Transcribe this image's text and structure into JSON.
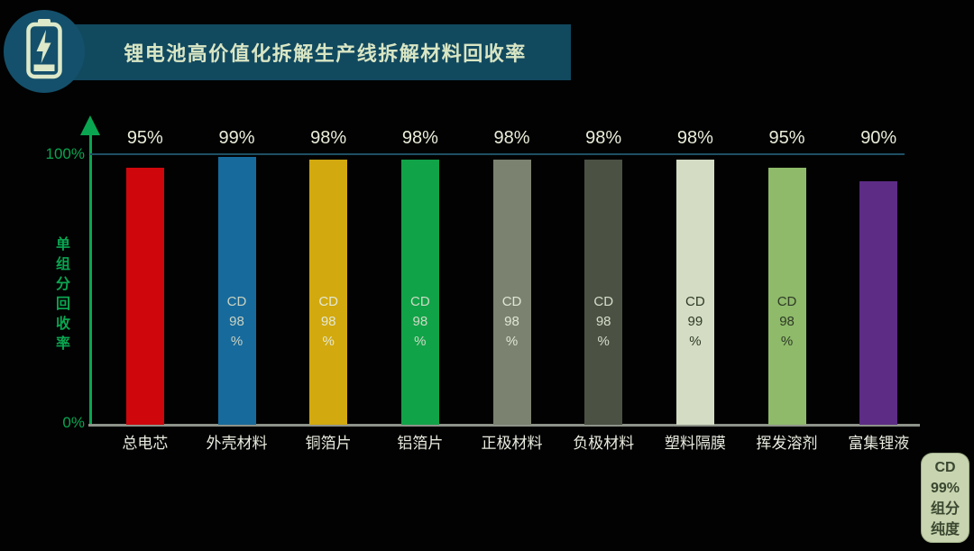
{
  "header": {
    "title": "锂电池高价值化拆解生产线拆解材料回收率",
    "icon": "battery-charging-icon",
    "banner_color": "#11495f",
    "badge_color": "#14506b",
    "icon_color": "#dde9c9",
    "title_color": "#d9e6c4"
  },
  "colors": {
    "background": "#020202",
    "axis_green": "#0aa551",
    "gridline_teal": "#1d4f63",
    "baseline_gray": "#8d9389",
    "value_label": "#e9edda",
    "category_label": "#e8ebdf"
  },
  "chart_data": {
    "type": "bar",
    "title": "锂电池高价值化拆解生产线拆解材料回收率",
    "xlabel": "",
    "ylabel": "单组分回收率",
    "ylim": [
      0,
      100
    ],
    "y_axis_labels": {
      "top": "100%",
      "bottom": "0%"
    },
    "grid": "single horizontal reference line at 100%",
    "legend": "none",
    "categories": [
      "总电芯",
      "外壳材料",
      "铜箔片",
      "铝箔片",
      "正极材料",
      "负极材料",
      "塑料隔膜",
      "挥发溶剂",
      "富集锂液"
    ],
    "values": [
      95,
      99,
      98,
      98,
      98,
      98,
      98,
      95,
      90
    ],
    "bars": [
      {
        "category": "总电芯",
        "value": 95,
        "value_label": "95%",
        "color": "#cf070c",
        "cd_lines": null,
        "cd_text_color": null
      },
      {
        "category": "外壳材料",
        "value": 99,
        "value_label": "99%",
        "color": "#176a9c",
        "cd_lines": [
          "CD",
          "98",
          "%"
        ],
        "cd_text_color": "#c9d3c2"
      },
      {
        "category": "铜箔片",
        "value": 98,
        "value_label": "98%",
        "color": "#d2a90e",
        "cd_lines": [
          "CD",
          "98",
          "%"
        ],
        "cd_text_color": "#e3e9d6"
      },
      {
        "category": "铝箔片",
        "value": 98,
        "value_label": "98%",
        "color": "#11a348",
        "cd_lines": [
          "CD",
          "98",
          "%"
        ],
        "cd_text_color": "#cfdac6"
      },
      {
        "category": "正极材料",
        "value": 98,
        "value_label": "98%",
        "color": "#7b8270",
        "cd_lines": [
          "CD",
          "98",
          "%"
        ],
        "cd_text_color": "#e0e6d4"
      },
      {
        "category": "负极材料",
        "value": 98,
        "value_label": "98%",
        "color": "#4b5244",
        "cd_lines": [
          "CD",
          "98",
          "%"
        ],
        "cd_text_color": "#d6ddca"
      },
      {
        "category": "塑料隔膜",
        "value": 98,
        "value_label": "98%",
        "color": "#d4dcc4",
        "cd_lines": [
          "CD",
          "99",
          "%"
        ],
        "cd_text_color": "#2f3a26"
      },
      {
        "category": "挥发溶剂",
        "value": 95,
        "value_label": "95%",
        "color": "#8eba6a",
        "cd_lines": [
          "CD",
          "98",
          "%"
        ],
        "cd_text_color": "#2f3a26"
      },
      {
        "category": "富集锂液",
        "value": 90,
        "value_label": "90%",
        "color": "#5d2c85",
        "cd_lines": null,
        "cd_text_color": null
      }
    ]
  },
  "footnote_box": {
    "lines": [
      "CD",
      "99%",
      "组分",
      "纯度"
    ],
    "background": "#c7d4af",
    "text_color": "#3a462f"
  }
}
